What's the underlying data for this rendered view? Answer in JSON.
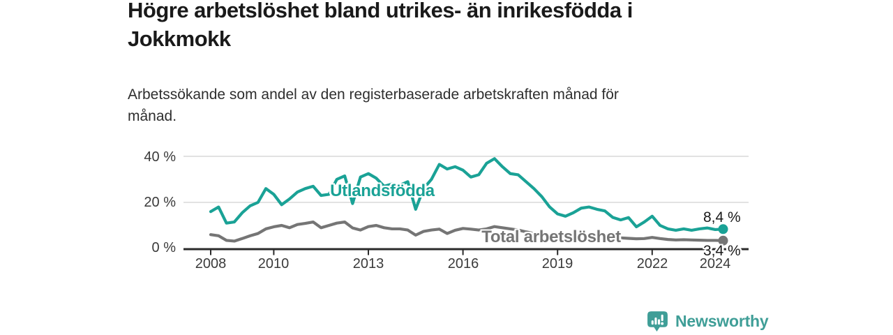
{
  "header": {
    "title": "Högre arbetslöshet bland utrikes- än inrikesfödda i\nJokkmokk",
    "subtitle": "Arbetssökande som andel av den registerbaserade arbetskraften månad för\nmånad."
  },
  "chart_data": {
    "type": "line",
    "title": "Högre arbetslöshet bland utrikes- än inrikesfödda i Jokkmokk",
    "subtitle": "Arbetssökande som andel av den registerbaserade arbetskraften månad för månad.",
    "unit": "%",
    "grid": "horizontal",
    "legend": "inline-labels",
    "ylim": [
      0,
      42
    ],
    "xlim": [
      2007.1,
      2025.1
    ],
    "y_ticks": [
      {
        "label": "0 %",
        "value": 0
      },
      {
        "label": "20 %",
        "value": 20
      },
      {
        "label": "40 %",
        "value": 40
      }
    ],
    "x_ticks": [
      {
        "label": "2008",
        "year": 2008
      },
      {
        "label": "2010",
        "year": 2010
      },
      {
        "label": "2013",
        "year": 2013
      },
      {
        "label": "2016",
        "year": 2016
      },
      {
        "label": "2019",
        "year": 2019
      },
      {
        "label": "2022",
        "year": 2022
      },
      {
        "label": "2024",
        "year": 2024
      }
    ],
    "x": [
      2008,
      2008.25,
      2008.5,
      2008.75,
      2009,
      2009.25,
      2009.5,
      2009.75,
      2010,
      2010.25,
      2010.5,
      2010.75,
      2011,
      2011.25,
      2011.5,
      2011.75,
      2012,
      2012.25,
      2012.5,
      2012.75,
      2013,
      2013.25,
      2013.5,
      2013.75,
      2014,
      2014.25,
      2014.5,
      2014.75,
      2015,
      2015.25,
      2015.5,
      2015.75,
      2016,
      2016.25,
      2016.5,
      2016.75,
      2017,
      2017.25,
      2017.5,
      2017.75,
      2018,
      2018.25,
      2018.5,
      2018.75,
      2019,
      2019.25,
      2019.5,
      2019.75,
      2020,
      2020.25,
      2020.5,
      2020.75,
      2021,
      2021.25,
      2021.5,
      2021.75,
      2022,
      2022.25,
      2022.5,
      2022.75,
      2023,
      2023.25,
      2023.5,
      2023.75,
      2024,
      2024.25
    ],
    "series": [
      {
        "name": "Utlandsfödda",
        "color": "#1aa296",
        "end_label": "8,4 %",
        "end_value": 8.4,
        "values": [
          16,
          18,
          11,
          11.5,
          15.5,
          18.5,
          20,
          26,
          23.5,
          19,
          21.5,
          24.5,
          26,
          27,
          23,
          23.5,
          30,
          31.5,
          19.5,
          31,
          32.5,
          30.5,
          27,
          28,
          27.5,
          29,
          17,
          26,
          30,
          36.5,
          34.5,
          35.5,
          34,
          31,
          32,
          37,
          39,
          35.5,
          32.5,
          32,
          29,
          26,
          22.5,
          18,
          15,
          14,
          15.5,
          17.5,
          18,
          17,
          16.3,
          13.5,
          12.4,
          13.4,
          9.4,
          11.5,
          14,
          10,
          8.5,
          7.9,
          8.5,
          7.9,
          8.5,
          8.9,
          8.2,
          8.4
        ]
      },
      {
        "name": "Total arbetslöshet",
        "color": "#757575",
        "end_label": "3,4 %",
        "end_value": 3.4,
        "values": [
          6,
          5.5,
          3.5,
          3.2,
          4.3,
          5.5,
          6.5,
          8.5,
          9.4,
          10,
          9,
          10.4,
          10.9,
          11.5,
          9,
          10,
          11,
          11.5,
          8.9,
          8,
          9.5,
          10,
          9,
          8.5,
          8.5,
          8,
          5.8,
          7.4,
          8,
          8.4,
          6.5,
          7.9,
          8.7,
          8.4,
          8,
          8.5,
          9.5,
          9,
          8.5,
          8,
          7.2,
          6.5,
          6,
          5.5,
          5,
          4.8,
          4.6,
          4.8,
          5.5,
          5.8,
          5.5,
          5,
          4.6,
          4.4,
          4.2,
          4.3,
          4.8,
          4.3,
          3.9,
          3.7,
          3.8,
          3.7,
          3.6,
          3.5,
          3.5,
          3.4
        ]
      }
    ],
    "axis_color": "#2a2a2a",
    "gridline_color": "#d8d8d8"
  },
  "footer": {
    "logo_text": "Newsworthy",
    "logo_icon": "newsworthy-bar-chart-bubble-icon",
    "logo_color": "#3f9e97"
  }
}
